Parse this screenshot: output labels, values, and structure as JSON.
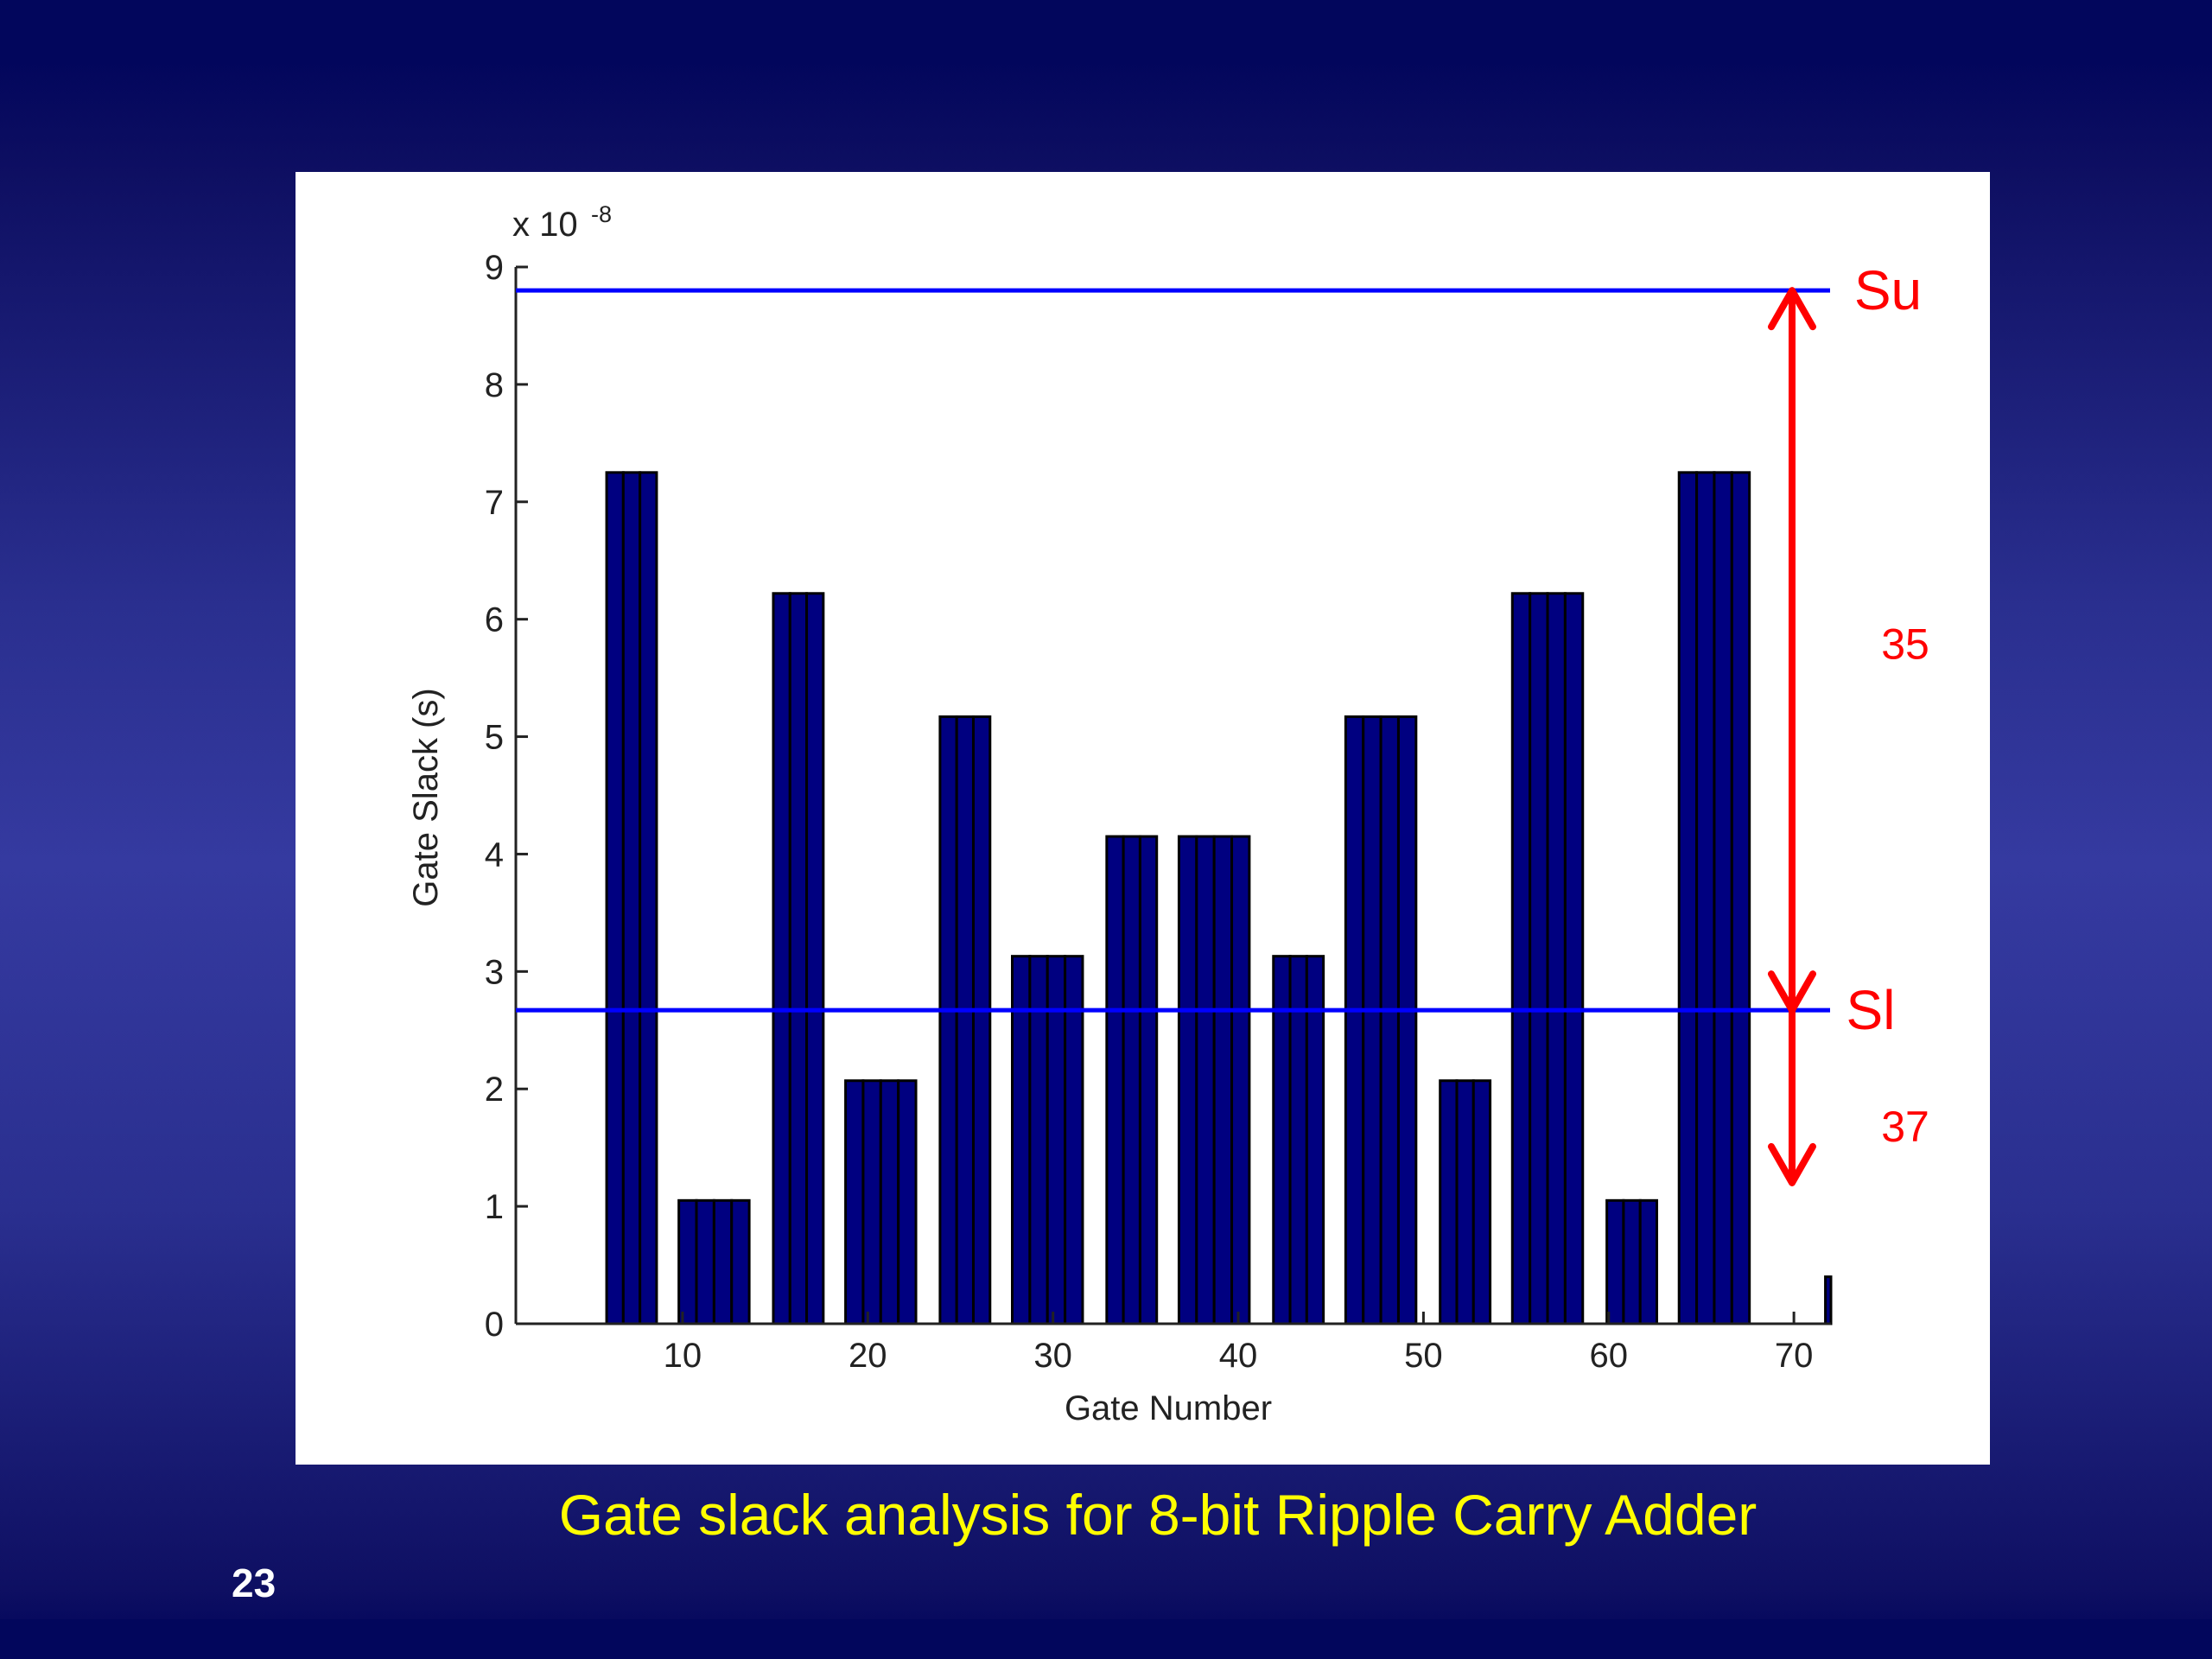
{
  "slide": {
    "caption": "Gate slack analysis for 8-bit Ripple Carry Adder",
    "page_number": "23"
  },
  "chart_data": {
    "type": "bar",
    "title": "",
    "xlabel": "Gate Number",
    "ylabel": "Gate Slack (s)",
    "y_exponent_label": "x 10",
    "y_exponent_power": "-8",
    "xlim": [
      1,
      72
    ],
    "ylim": [
      0,
      9
    ],
    "x_ticks": [
      10,
      20,
      30,
      40,
      50,
      60,
      70
    ],
    "y_ticks": [
      0,
      1,
      2,
      3,
      4,
      5,
      6,
      7,
      8,
      9
    ],
    "bar_fill_color": "#000080",
    "bar_edge_color": "#000000",
    "grid": false,
    "bar_groups": [
      {
        "x_start": 5.9,
        "x_end": 8.6,
        "value": 7.25
      },
      {
        "x_start": 9.8,
        "x_end": 13.6,
        "value": 1.05
      },
      {
        "x_start": 14.9,
        "x_end": 17.6,
        "value": 6.22
      },
      {
        "x_start": 18.8,
        "x_end": 22.6,
        "value": 2.07
      },
      {
        "x_start": 23.9,
        "x_end": 26.6,
        "value": 5.17
      },
      {
        "x_start": 27.8,
        "x_end": 31.6,
        "value": 3.13
      },
      {
        "x_start": 32.9,
        "x_end": 35.6,
        "value": 4.15
      },
      {
        "x_start": 36.8,
        "x_end": 40.6,
        "value": 4.15
      },
      {
        "x_start": 41.9,
        "x_end": 44.6,
        "value": 3.13
      },
      {
        "x_start": 45.8,
        "x_end": 49.6,
        "value": 5.17
      },
      {
        "x_start": 50.9,
        "x_end": 53.6,
        "value": 2.07
      },
      {
        "x_start": 54.8,
        "x_end": 58.6,
        "value": 6.22
      },
      {
        "x_start": 59.9,
        "x_end": 62.6,
        "value": 1.05
      },
      {
        "x_start": 63.8,
        "x_end": 67.6,
        "value": 7.25
      },
      {
        "x_start": 71.7,
        "x_end": 72.0,
        "value": 0.4
      }
    ],
    "reference_lines": [
      {
        "label": "Su",
        "value": 8.8,
        "color": "#0000ff"
      },
      {
        "label": "Sl",
        "value": 2.67,
        "color": "#0000ff"
      }
    ],
    "annotations": {
      "arrow_color": "#ff0000",
      "arrow_x": 69.9,
      "upper_arrow": {
        "from": 2.67,
        "to": 8.8,
        "label": "35"
      },
      "lower_arrow": {
        "from": 2.67,
        "to": 1.2,
        "label": "37"
      }
    }
  }
}
